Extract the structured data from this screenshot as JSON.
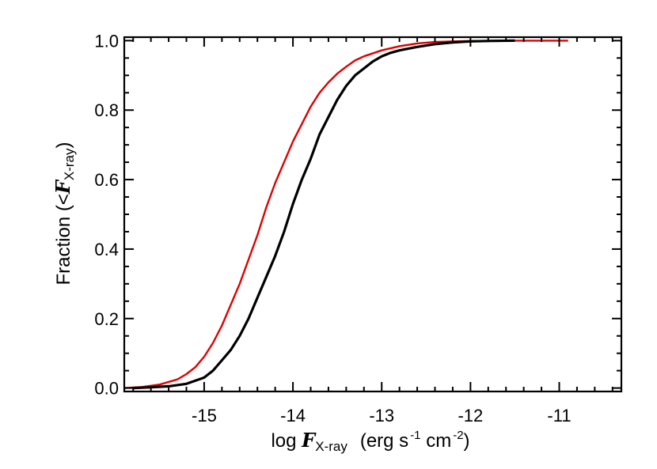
{
  "chart_data": {
    "type": "line",
    "title": "",
    "xlabel": {
      "prefix": "log ",
      "symbol": "F",
      "subscript": "X-ray",
      "units_a": "(erg s",
      "exp1": "-1",
      "units_b": " cm",
      "exp2": "-2",
      "units_c": ")"
    },
    "ylabel": {
      "prefix": "Fraction  (<",
      "symbol": "F",
      "subscript": "X-ray",
      "suffix": ")"
    },
    "xlim": [
      -15.9,
      -10.3
    ],
    "ylim": [
      -0.01,
      1.01
    ],
    "x_ticks": [
      {
        "value": -15,
        "label": "-15"
      },
      {
        "value": -14,
        "label": "-14"
      },
      {
        "value": -13,
        "label": "-13"
      },
      {
        "value": -12,
        "label": "-12"
      },
      {
        "value": -11,
        "label": "-11"
      }
    ],
    "y_ticks": [
      {
        "value": 0.0,
        "label": "0.0"
      },
      {
        "value": 0.2,
        "label": "0.2"
      },
      {
        "value": 0.4,
        "label": "0.4"
      },
      {
        "value": 0.6,
        "label": "0.6"
      },
      {
        "value": 0.8,
        "label": "0.8"
      },
      {
        "value": 1.0,
        "label": "1.0"
      }
    ],
    "x_minor_step": 0.2,
    "y_minor_step": 0.05,
    "grid": false,
    "series": [
      {
        "color": "#e00000",
        "points": [
          [
            -15.9,
            0.0
          ],
          [
            -15.7,
            0.003
          ],
          [
            -15.5,
            0.01
          ],
          [
            -15.3,
            0.025
          ],
          [
            -15.2,
            0.04
          ],
          [
            -15.1,
            0.06
          ],
          [
            -15.0,
            0.09
          ],
          [
            -14.9,
            0.13
          ],
          [
            -14.8,
            0.18
          ],
          [
            -14.7,
            0.24
          ],
          [
            -14.6,
            0.3
          ],
          [
            -14.5,
            0.37
          ],
          [
            -14.4,
            0.44
          ],
          [
            -14.3,
            0.52
          ],
          [
            -14.2,
            0.59
          ],
          [
            -14.1,
            0.65
          ],
          [
            -14.0,
            0.71
          ],
          [
            -13.9,
            0.76
          ],
          [
            -13.8,
            0.81
          ],
          [
            -13.7,
            0.85
          ],
          [
            -13.6,
            0.88
          ],
          [
            -13.5,
            0.905
          ],
          [
            -13.4,
            0.925
          ],
          [
            -13.3,
            0.943
          ],
          [
            -13.2,
            0.955
          ],
          [
            -13.0,
            0.972
          ],
          [
            -12.8,
            0.984
          ],
          [
            -12.6,
            0.992
          ],
          [
            -12.4,
            0.996
          ],
          [
            -12.2,
            0.998
          ],
          [
            -12.0,
            0.999
          ],
          [
            -11.5,
            1.0
          ],
          [
            -10.9,
            1.0
          ]
        ]
      },
      {
        "color": "#000000",
        "points": [
          [
            -15.8,
            0.0
          ],
          [
            -15.6,
            0.002
          ],
          [
            -15.4,
            0.005
          ],
          [
            -15.2,
            0.012
          ],
          [
            -15.0,
            0.03
          ],
          [
            -14.9,
            0.05
          ],
          [
            -14.8,
            0.08
          ],
          [
            -14.7,
            0.11
          ],
          [
            -14.6,
            0.15
          ],
          [
            -14.5,
            0.2
          ],
          [
            -14.4,
            0.26
          ],
          [
            -14.3,
            0.32
          ],
          [
            -14.2,
            0.38
          ],
          [
            -14.1,
            0.45
          ],
          [
            -14.0,
            0.53
          ],
          [
            -13.9,
            0.6
          ],
          [
            -13.8,
            0.66
          ],
          [
            -13.7,
            0.73
          ],
          [
            -13.6,
            0.78
          ],
          [
            -13.5,
            0.83
          ],
          [
            -13.4,
            0.87
          ],
          [
            -13.3,
            0.9
          ],
          [
            -13.2,
            0.92
          ],
          [
            -13.1,
            0.94
          ],
          [
            -13.0,
            0.955
          ],
          [
            -12.9,
            0.965
          ],
          [
            -12.8,
            0.972
          ],
          [
            -12.6,
            0.982
          ],
          [
            -12.4,
            0.99
          ],
          [
            -12.2,
            0.995
          ],
          [
            -12.0,
            0.998
          ],
          [
            -11.8,
            0.999
          ],
          [
            -11.5,
            1.0
          ]
        ]
      }
    ]
  }
}
